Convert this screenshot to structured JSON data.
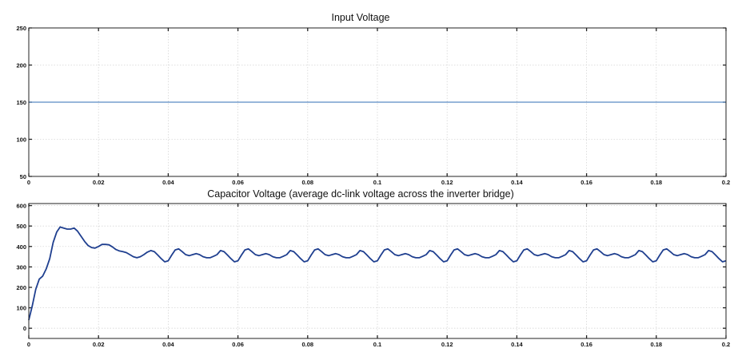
{
  "chart_data": [
    {
      "type": "line",
      "title": "Input Voltage",
      "xlim": [
        0,
        0.2
      ],
      "ylim": [
        50,
        250
      ],
      "grid": true,
      "x_ticks": [
        "0",
        "0.02",
        "0.04",
        "0.06",
        "0.08",
        "0.1",
        "0.12",
        "0.14",
        "0.16",
        "0.18",
        "0.2"
      ],
      "y_ticks": [
        "50",
        "100",
        "150",
        "200",
        "250"
      ],
      "series": [
        {
          "color": "#2f6db5",
          "x": [
            0,
            0.2
          ],
          "y": [
            150,
            150
          ]
        }
      ]
    },
    {
      "type": "line",
      "title": "Capacitor Voltage (average dc-link voltage across the inverter bridge)",
      "xlim": [
        0,
        0.2
      ],
      "ylim": [
        -50,
        610
      ],
      "grid": true,
      "x_ticks": [
        "0",
        "0.02",
        "0.04",
        "0.06",
        "0.08",
        "0.1",
        "0.12",
        "0.14",
        "0.16",
        "0.18",
        "0.2"
      ],
      "y_ticks": [
        "0",
        "100",
        "200",
        "300",
        "400",
        "500",
        "600"
      ],
      "series": [
        {
          "color": "#1f3f8f",
          "x": [
            0,
            0.001,
            0.002,
            0.003,
            0.004,
            0.005,
            0.006,
            0.007,
            0.008,
            0.009,
            0.01,
            0.011,
            0.012,
            0.013,
            0.014,
            0.015,
            0.016,
            0.017,
            0.018,
            0.019,
            0.02,
            0.021,
            0.022,
            0.023,
            0.024,
            0.025,
            0.026,
            0.027,
            0.028,
            0.029,
            0.03,
            0.031,
            0.032,
            0.033,
            0.034,
            0.035,
            0.036,
            0.037,
            0.038,
            0.039,
            0.04,
            0.041,
            0.042,
            0.043,
            0.044,
            0.045,
            0.046,
            0.047,
            0.048,
            0.049,
            0.05,
            0.051,
            0.052,
            0.053,
            0.054,
            0.055,
            0.056,
            0.057,
            0.058,
            0.059,
            0.06,
            0.061,
            0.062,
            0.063,
            0.064,
            0.065,
            0.066,
            0.067,
            0.068,
            0.069,
            0.07,
            0.071,
            0.072,
            0.073,
            0.074,
            0.075,
            0.076,
            0.077,
            0.078,
            0.079,
            0.08,
            0.081,
            0.082,
            0.083,
            0.084,
            0.085,
            0.086,
            0.087,
            0.088,
            0.089,
            0.09,
            0.091,
            0.092,
            0.093,
            0.094,
            0.095,
            0.096,
            0.097,
            0.098,
            0.099,
            0.1,
            0.101,
            0.102,
            0.103,
            0.104,
            0.105,
            0.106,
            0.107,
            0.108,
            0.109,
            0.11,
            0.111,
            0.112,
            0.113,
            0.114,
            0.115,
            0.116,
            0.117,
            0.118,
            0.119,
            0.12,
            0.121,
            0.122,
            0.123,
            0.124,
            0.125,
            0.126,
            0.127,
            0.128,
            0.129,
            0.13,
            0.131,
            0.132,
            0.133,
            0.134,
            0.135,
            0.136,
            0.137,
            0.138,
            0.139,
            0.14,
            0.141,
            0.142,
            0.143,
            0.144,
            0.145,
            0.146,
            0.147,
            0.148,
            0.149,
            0.15,
            0.151,
            0.152,
            0.153,
            0.154,
            0.155,
            0.156,
            0.157,
            0.158,
            0.159,
            0.16,
            0.161,
            0.162,
            0.163,
            0.164,
            0.165,
            0.166,
            0.167,
            0.168,
            0.169,
            0.17,
            0.171,
            0.172,
            0.173,
            0.174,
            0.175,
            0.176,
            0.177,
            0.178,
            0.179,
            0.18,
            0.181,
            0.182,
            0.183,
            0.184,
            0.185,
            0.186,
            0.187,
            0.188,
            0.189,
            0.19,
            0.191,
            0.192,
            0.193,
            0.194,
            0.195,
            0.196,
            0.197,
            0.198,
            0.199,
            0.2
          ],
          "y": [
            40,
            110,
            190,
            240,
            255,
            290,
            340,
            420,
            470,
            495,
            490,
            485,
            485,
            490,
            475,
            450,
            425,
            405,
            395,
            392,
            400,
            410,
            410,
            408,
            398,
            385,
            378,
            375,
            370,
            360,
            350,
            345,
            350,
            360,
            372,
            380,
            375,
            358,
            340,
            325,
            330,
            358,
            383,
            388,
            375,
            360,
            355,
            360,
            365,
            360,
            350,
            345,
            345,
            352,
            360,
            380,
            375,
            358,
            340,
            325,
            330,
            358,
            383,
            388,
            375,
            360,
            355,
            360,
            365,
            360,
            350,
            345,
            345,
            352,
            360,
            380,
            375,
            358,
            340,
            325,
            330,
            358,
            383,
            388,
            375,
            360,
            355,
            360,
            365,
            360,
            350,
            345,
            345,
            352,
            360,
            380,
            375,
            358,
            340,
            325,
            330,
            358,
            383,
            388,
            375,
            360,
            355,
            360,
            365,
            360,
            350,
            345,
            345,
            352,
            360,
            380,
            375,
            358,
            340,
            325,
            330,
            358,
            383,
            388,
            375,
            360,
            355,
            360,
            365,
            360,
            350,
            345,
            345,
            352,
            360,
            380,
            375,
            358,
            340,
            325,
            330,
            358,
            383,
            388,
            375,
            360,
            355,
            360,
            365,
            360,
            350,
            345,
            345,
            352,
            360,
            380,
            375,
            358,
            340,
            325,
            330,
            358,
            383,
            388,
            375,
            360,
            355,
            360,
            365,
            360,
            350,
            345,
            345,
            352,
            360,
            380,
            375,
            358,
            340,
            325,
            330,
            358,
            383,
            388,
            375,
            360,
            355,
            360,
            365,
            360,
            350,
            345,
            345,
            352,
            360,
            380,
            375,
            358,
            340,
            325,
            330
          ]
        }
      ]
    }
  ]
}
